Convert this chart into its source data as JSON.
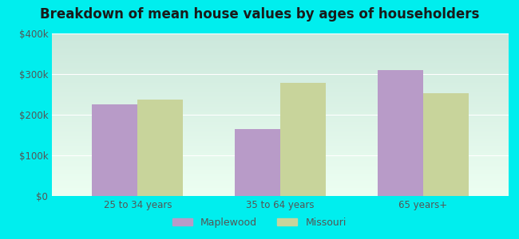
{
  "title": "Breakdown of mean house values by ages of householders",
  "categories": [
    "25 to 34 years",
    "35 to 64 years",
    "65 years+"
  ],
  "maplewood_values": [
    225000,
    165000,
    310000
  ],
  "missouri_values": [
    237000,
    278000,
    252000
  ],
  "maplewood_color": "#b89bc8",
  "missouri_color": "#c8d49b",
  "ylim": [
    0,
    400000
  ],
  "yticks": [
    0,
    100000,
    200000,
    300000,
    400000
  ],
  "ytick_labels": [
    "$0",
    "$100k",
    "$200k",
    "$300k",
    "$400k"
  ],
  "background_color": "#00eeee",
  "plot_bg_top": "#cce8dc",
  "plot_bg_bottom": "#edfff2",
  "bar_width": 0.32,
  "legend_labels": [
    "Maplewood",
    "Missouri"
  ],
  "title_fontsize": 12,
  "tick_fontsize": 8.5,
  "legend_fontsize": 9,
  "tick_color": "#555555",
  "title_color": "#1a1a1a"
}
